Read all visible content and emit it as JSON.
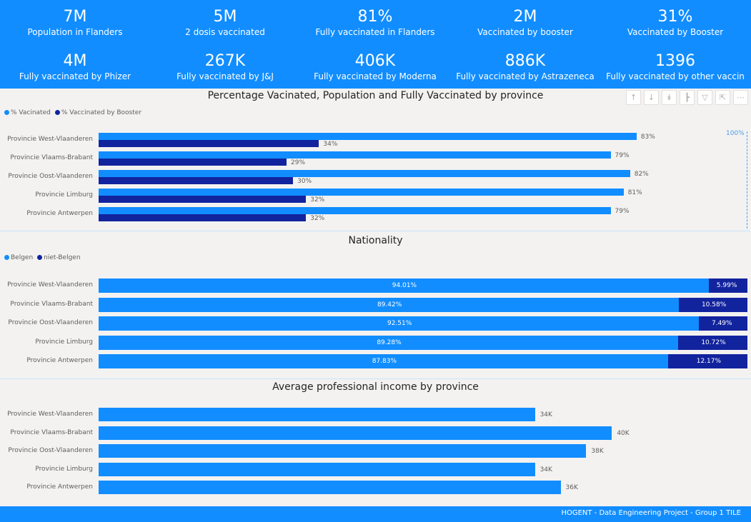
{
  "kpis": [
    {
      "value": "7M",
      "label": "Population in Flanders"
    },
    {
      "value": "5M",
      "label": "2 dosis vaccinated"
    },
    {
      "value": "81%",
      "label": "Fully vaccinated in Flanders"
    },
    {
      "value": "2M",
      "label": "Vaccinated by booster"
    },
    {
      "value": "31%",
      "label": "Vaccinated by Booster"
    },
    {
      "value": "4M",
      "label": "Fully vaccinated by Phizer"
    },
    {
      "value": "267K",
      "label": "Fully vaccinated by J&J"
    },
    {
      "value": "406K",
      "label": "Fully vaccinated by Moderna"
    },
    {
      "value": "886K",
      "label": "Fully vaccinated by Astrazeneca"
    },
    {
      "value": "1396",
      "label": "Fully vaccinated by other vaccin"
    }
  ],
  "colors": {
    "light": "#118dff",
    "dark": "#12239e",
    "band": "#118dff"
  },
  "toolbar_icons": [
    "arrow-up-icon",
    "arrow-down-icon",
    "double-arrow-down-icon",
    "expand-hierarchy-icon",
    "filter-icon",
    "focus-mode-icon",
    "more-options-icon"
  ],
  "footer": "HOGENT - Data Engineering Project - Group 1 TILE",
  "chart_data": [
    {
      "type": "bar",
      "orientation": "horizontal",
      "title": "Percentage Vacinated, Population and Fully Vaccinated by province",
      "categories": [
        "Provincie West-Vlaanderen",
        "Provincie Vlaams-Brabant",
        "Provincie Oost-Vlaanderen",
        "Provincie Limburg",
        "Provincie Antwerpen"
      ],
      "series": [
        {
          "name": "% Vacinated",
          "values": [
            83,
            79,
            82,
            81,
            79
          ],
          "labels": [
            "83%",
            "79%",
            "82%",
            "81%",
            "79%"
          ]
        },
        {
          "name": "% Vaccinated by Booster",
          "values": [
            34,
            29,
            30,
            32,
            32
          ],
          "labels": [
            "34%",
            "29%",
            "30%",
            "32%",
            "32%"
          ]
        }
      ],
      "reference_line": {
        "label": "100%",
        "value": 100
      },
      "xlim": [
        0,
        100
      ],
      "legend": "top-left"
    },
    {
      "type": "bar",
      "orientation": "horizontal",
      "stacked": true,
      "title": "Nationality",
      "categories": [
        "Provincie West-Vlaanderen",
        "Provincie Vlaams-Brabant",
        "Provincie Oost-Vlaanderen",
        "Provincie Limburg",
        "Provincie Antwerpen"
      ],
      "series": [
        {
          "name": "Belgen",
          "values": [
            94.01,
            89.42,
            92.51,
            89.28,
            87.83
          ],
          "labels": [
            "94.01%",
            "89.42%",
            "92.51%",
            "89.28%",
            "87.83%"
          ]
        },
        {
          "name": "niet-Belgen",
          "values": [
            5.99,
            10.58,
            7.49,
            10.72,
            12.17
          ],
          "labels": [
            "5.99%",
            "10.58%",
            "7.49%",
            "10.72%",
            "12.17%"
          ]
        }
      ],
      "xlim": [
        0,
        100
      ],
      "legend": "top-left"
    },
    {
      "type": "bar",
      "orientation": "horizontal",
      "title": "Average professional income by province",
      "categories": [
        "Provincie West-Vlaanderen",
        "Provincie Vlaams-Brabant",
        "Provincie Oost-Vlaanderen",
        "Provincie Limburg",
        "Provincie Antwerpen"
      ],
      "series": [
        {
          "values": [
            34,
            40,
            38,
            34,
            36
          ],
          "labels": [
            "34K",
            "40K",
            "38K",
            "34K",
            "36K"
          ]
        }
      ],
      "xlim": [
        0,
        48
      ]
    }
  ]
}
